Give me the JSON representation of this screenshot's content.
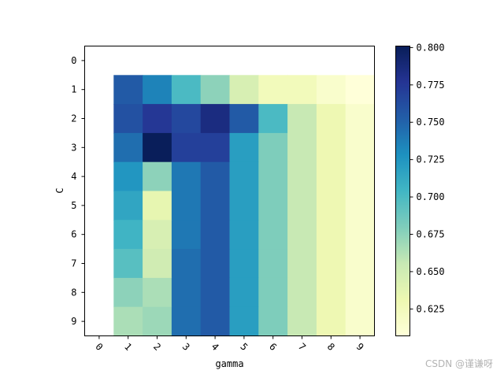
{
  "chart_data": {
    "type": "heatmap",
    "xlabel": "gamma",
    "ylabel": "C",
    "x_ticks": [
      "0",
      "1",
      "2",
      "3",
      "4",
      "5",
      "6",
      "7",
      "8",
      "9"
    ],
    "y_ticks": [
      "0",
      "1",
      "2",
      "3",
      "4",
      "5",
      "6",
      "7",
      "8",
      "9"
    ],
    "values": [
      [
        null,
        null,
        null,
        null,
        null,
        null,
        null,
        null,
        null,
        null
      ],
      [
        null,
        0.755,
        0.735,
        0.7,
        0.675,
        0.645,
        0.625,
        0.625,
        0.615,
        0.607
      ],
      [
        null,
        0.76,
        0.775,
        0.765,
        0.785,
        0.755,
        0.7,
        0.655,
        0.63,
        0.615
      ],
      [
        null,
        0.745,
        0.8,
        0.77,
        0.77,
        0.72,
        0.68,
        0.655,
        0.63,
        0.615
      ],
      [
        null,
        0.725,
        0.675,
        0.74,
        0.755,
        0.72,
        0.68,
        0.655,
        0.63,
        0.615
      ],
      [
        null,
        0.715,
        0.635,
        0.74,
        0.755,
        0.72,
        0.68,
        0.655,
        0.63,
        0.615
      ],
      [
        null,
        0.705,
        0.645,
        0.74,
        0.755,
        0.72,
        0.68,
        0.655,
        0.63,
        0.615
      ],
      [
        null,
        0.695,
        0.65,
        0.745,
        0.755,
        0.72,
        0.68,
        0.655,
        0.63,
        0.615
      ],
      [
        null,
        0.675,
        0.665,
        0.745,
        0.755,
        0.72,
        0.68,
        0.655,
        0.63,
        0.615
      ],
      [
        null,
        0.665,
        0.67,
        0.745,
        0.755,
        0.72,
        0.68,
        0.655,
        0.63,
        0.615
      ]
    ],
    "colormap": "YlGnBu",
    "colorbar": {
      "vmin": 0.607,
      "vmax": 0.801,
      "ticks": [
        0.625,
        0.65,
        0.675,
        0.7,
        0.725,
        0.75,
        0.775,
        0.8
      ],
      "tick_labels": [
        "0.625",
        "0.650",
        "0.675",
        "0.700",
        "0.725",
        "0.750",
        "0.775",
        "0.800"
      ]
    },
    "grid": false,
    "x_tick_rotation": 45
  },
  "watermark": "CSDN @谨谦呀"
}
